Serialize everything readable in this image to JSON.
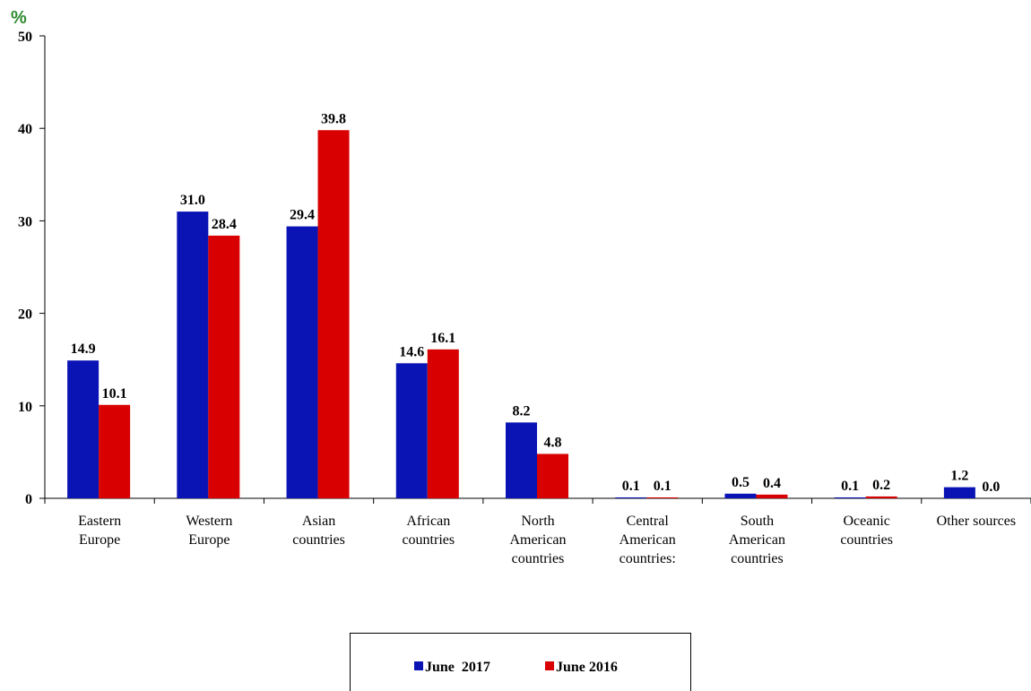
{
  "chart_data": {
    "type": "bar",
    "y_label": "%",
    "categories": [
      "Eastern\nEurope",
      "Western\nEurope",
      "Asian\ncountries",
      "African\ncountries",
      "North\nAmerican\ncountries",
      "Central\nAmerican\ncountries:",
      "South\nAmerican\ncountries",
      "Oceanic\ncountries",
      "Other sources"
    ],
    "series": [
      {
        "name": "June  2017",
        "color": "#0a14b4",
        "values": [
          14.9,
          31.0,
          29.4,
          14.6,
          8.2,
          0.1,
          0.5,
          0.1,
          1.2
        ],
        "value_labels": [
          "14.9",
          "31.0",
          "29.4",
          "14.6",
          "8.2",
          "0.1",
          "0.5",
          "0.1",
          "1.2"
        ]
      },
      {
        "name": "June 2016",
        "color": "#d80000",
        "values": [
          10.1,
          28.4,
          39.8,
          16.1,
          4.8,
          0.1,
          0.4,
          0.2,
          0.0
        ],
        "value_labels": [
          "10.1",
          "28.4",
          "39.8",
          "16.1",
          "4.8",
          "0.1",
          "0.4",
          "0.2",
          "0.0"
        ]
      }
    ],
    "ylim": [
      0,
      50
    ],
    "yticks": [
      0,
      10,
      20,
      30,
      40,
      50
    ]
  }
}
